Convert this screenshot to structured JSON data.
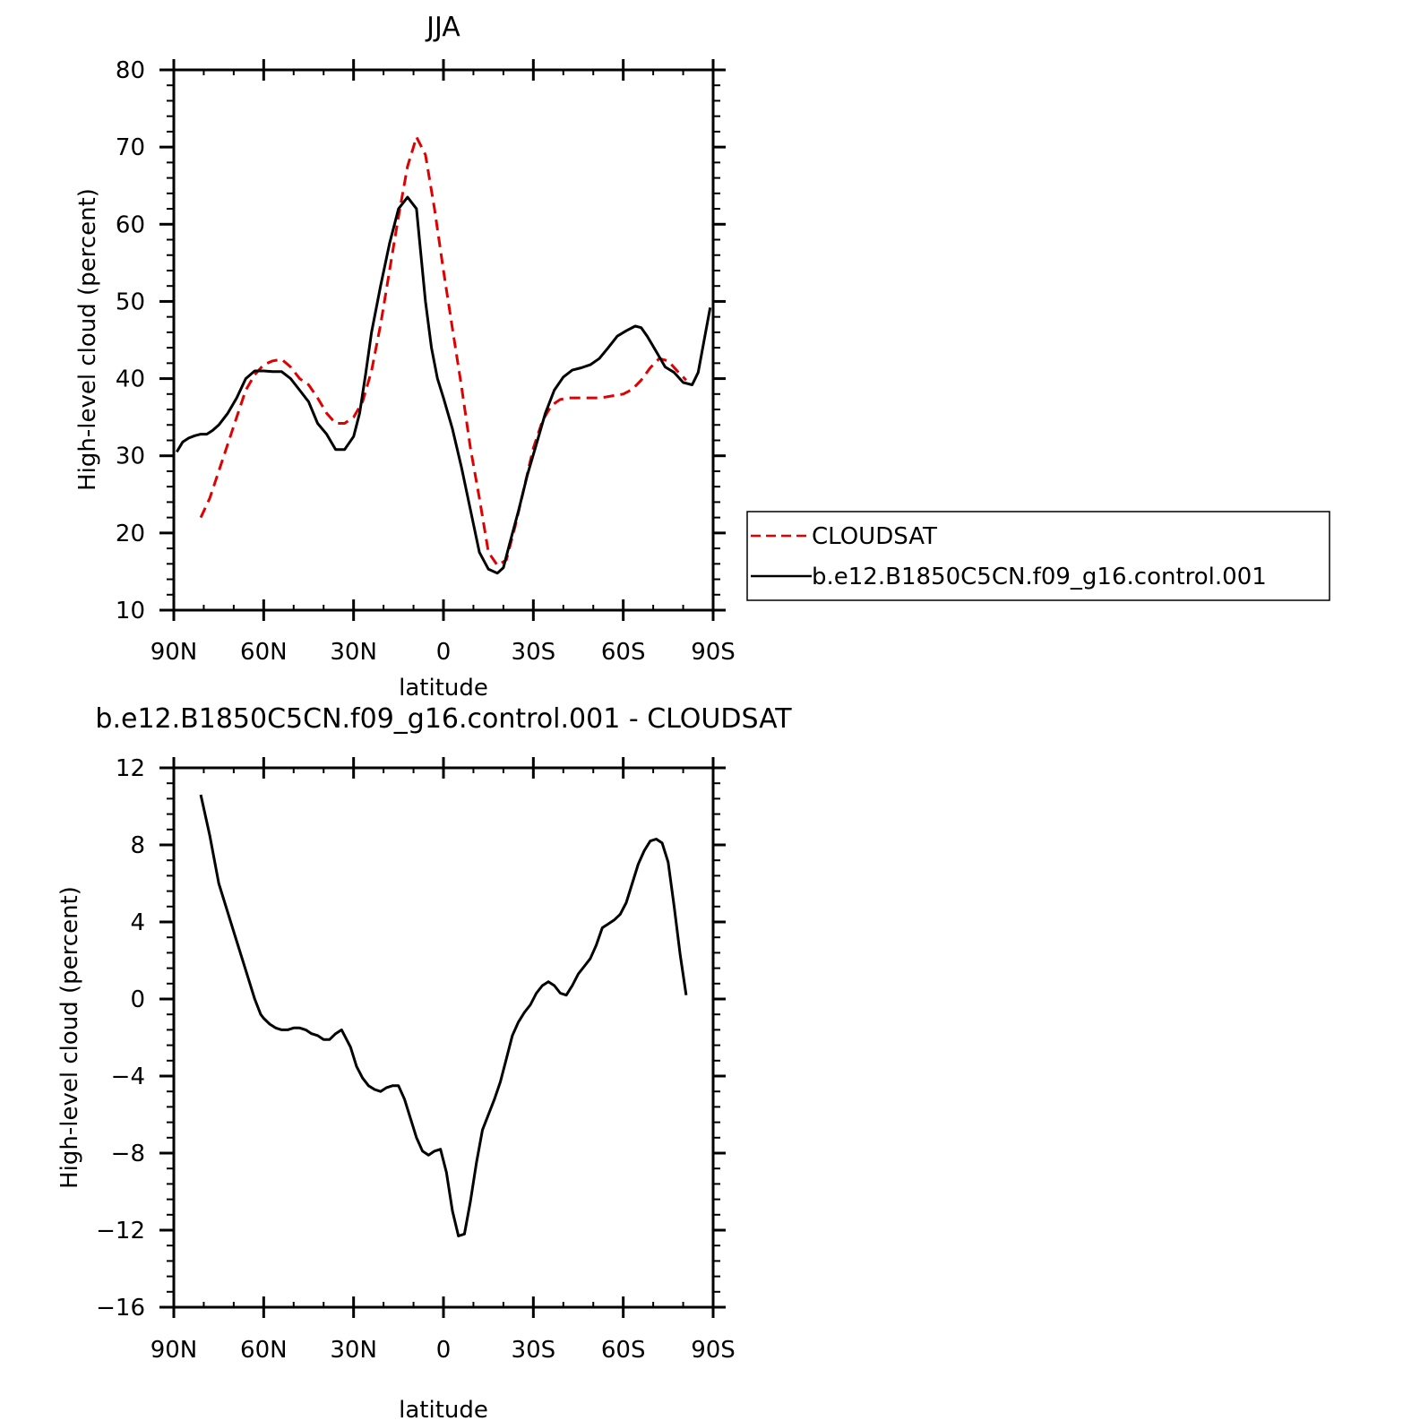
{
  "chart_data": [
    {
      "type": "line",
      "title": "JJA",
      "xlabel": "latitude",
      "ylabel": "High-level cloud (percent)",
      "x_unit": "degrees latitude (positive = N, negative = S)",
      "xlim": [
        90,
        -90
      ],
      "ylim": [
        10,
        80
      ],
      "x_ticks": [
        90,
        60,
        30,
        0,
        -30,
        -60,
        -90
      ],
      "x_tick_labels": [
        "90N",
        "60N",
        "30N",
        "0",
        "30S",
        "60S",
        "90S"
      ],
      "y_ticks": [
        10,
        20,
        30,
        40,
        50,
        60,
        70,
        80
      ],
      "y_tick_labels": [
        "10",
        "20",
        "30",
        "40",
        "50",
        "60",
        "70",
        "80"
      ],
      "grid": false,
      "legend": {
        "placement": "right-outside"
      },
      "series": [
        {
          "name": "CLOUDSAT",
          "color": "#e00000",
          "dash": "dashed",
          "x": [
            81,
            78,
            75,
            72,
            69,
            66,
            63,
            60,
            57,
            54,
            51,
            48,
            45,
            42,
            39,
            36,
            33,
            30,
            27,
            24,
            21,
            18,
            15,
            12,
            9,
            6,
            3,
            0,
            -3,
            -6,
            -9,
            -12,
            -15,
            -18,
            -21,
            -24,
            -27,
            -30,
            -33,
            -36,
            -39,
            -42,
            -45,
            -48,
            -51,
            -54,
            -57,
            -60,
            -63,
            -66,
            -69,
            -72,
            -75,
            -78,
            -81
          ],
          "y": [
            22,
            24.5,
            28,
            31.5,
            35,
            38.5,
            40.5,
            41.8,
            42.3,
            42.5,
            41.5,
            40,
            39.2,
            37.5,
            35.5,
            34.2,
            34.2,
            35,
            37,
            41,
            47,
            54,
            61,
            67.5,
            71.3,
            69,
            62,
            54,
            46.5,
            39,
            31,
            24.5,
            17.5,
            15.8,
            16.5,
            21,
            26,
            31,
            34.5,
            36.5,
            37.3,
            37.5,
            37.5,
            37.5,
            37.5,
            37.6,
            37.8,
            38,
            38.6,
            39.8,
            41.4,
            42.6,
            42.3,
            41,
            39.8
          ]
        },
        {
          "name": "b.e12.B1850C5CN.f09_g16.control.001",
          "color": "#000000",
          "dash": "solid",
          "x": [
            89,
            87,
            85,
            83,
            81,
            79,
            77,
            75,
            72,
            69,
            66,
            63,
            60,
            57,
            54,
            51,
            48,
            45,
            42,
            39,
            36,
            33,
            30,
            28,
            26,
            24,
            21,
            18,
            15,
            12,
            9,
            8,
            6,
            4,
            2,
            0,
            -3,
            -6,
            -9,
            -12,
            -15,
            -18,
            -20,
            -22,
            -25,
            -28,
            -31,
            -34,
            -37,
            -40,
            -43,
            -46,
            -49,
            -52,
            -55,
            -58,
            -61,
            -64,
            -66,
            -68,
            -71,
            -74,
            -77,
            -80,
            -83,
            -85,
            -87,
            -89
          ],
          "y": [
            30.5,
            31.8,
            32.3,
            32.6,
            32.8,
            32.8,
            33.3,
            34,
            35.5,
            37.5,
            40,
            41,
            41,
            40.9,
            40.9,
            40,
            38.5,
            37,
            34.2,
            32.8,
            30.8,
            30.8,
            32.5,
            35.5,
            40.5,
            46,
            52,
            57.5,
            62,
            63.5,
            62,
            58,
            50,
            44,
            40,
            37.5,
            33.5,
            28.5,
            23,
            17.5,
            15.3,
            14.8,
            15.5,
            18.5,
            22.8,
            27.5,
            31.5,
            35.5,
            38.5,
            40.2,
            41.1,
            41.4,
            41.8,
            42.6,
            44,
            45.5,
            46.2,
            46.8,
            46.6,
            45.5,
            43.5,
            41.5,
            40.8,
            39.5,
            39.2,
            40.8,
            45,
            49.2
          ]
        }
      ]
    },
    {
      "type": "line",
      "title": "b.e12.B1850C5CN.f09_g16.control.001 - CLOUDSAT",
      "xlabel": "latitude",
      "ylabel": "High-level cloud (percent)",
      "x_unit": "degrees latitude (positive = N, negative = S)",
      "xlim": [
        90,
        -90
      ],
      "ylim": [
        -16,
        12
      ],
      "x_ticks": [
        90,
        60,
        30,
        0,
        -30,
        -60,
        -90
      ],
      "x_tick_labels": [
        "90N",
        "60N",
        "30N",
        "0",
        "30S",
        "60S",
        "90S"
      ],
      "y_ticks": [
        -16,
        -12,
        -8,
        -4,
        0,
        4,
        8,
        12
      ],
      "y_tick_labels": [
        "−16",
        "−12",
        "−8",
        "−4",
        "0",
        "4",
        "8",
        "12"
      ],
      "grid": false,
      "series": [
        {
          "name": "",
          "color": "#000000",
          "dash": "solid",
          "x": [
            81,
            78,
            75,
            72,
            69,
            66,
            63,
            61,
            60,
            58,
            56,
            54,
            52,
            50,
            48,
            46,
            44,
            42,
            40,
            38,
            36,
            34,
            33,
            31,
            29,
            27,
            25,
            23,
            21,
            19,
            17,
            15,
            13,
            11,
            9,
            7,
            5,
            3,
            1,
            -1,
            -3,
            -5,
            -7,
            -9,
            -11,
            -13,
            -15,
            -17,
            -19,
            -21,
            -23,
            -25,
            -27,
            -29,
            -31,
            -33,
            -35,
            -37,
            -39,
            -41,
            -43,
            -45,
            -47,
            -49,
            -51,
            -53,
            -55,
            -57,
            -59,
            -61,
            -63,
            -65,
            -67,
            -69,
            -71,
            -73,
            -75,
            -77,
            -79,
            -81
          ],
          "y": [
            10.6,
            8.5,
            6,
            4.5,
            3,
            1.5,
            0,
            -0.8,
            -1,
            -1.3,
            -1.5,
            -1.6,
            -1.6,
            -1.5,
            -1.5,
            -1.6,
            -1.8,
            -1.9,
            -2.1,
            -2.1,
            -1.8,
            -1.6,
            -1.9,
            -2.5,
            -3.5,
            -4.1,
            -4.5,
            -4.7,
            -4.8,
            -4.6,
            -4.5,
            -4.5,
            -5.2,
            -6.2,
            -7.2,
            -7.9,
            -8.1,
            -7.9,
            -7.8,
            -9,
            -11,
            -12.3,
            -12.2,
            -10.5,
            -8.5,
            -6.8,
            -6,
            -5.2,
            -4.3,
            -3.1,
            -1.9,
            -1.2,
            -0.7,
            -0.3,
            0.3,
            0.7,
            0.9,
            0.7,
            0.3,
            0.2,
            0.7,
            1.3,
            1.7,
            2.1,
            2.8,
            3.7,
            3.9,
            4.1,
            4.4,
            5,
            6,
            7,
            7.7,
            8.2,
            8.3,
            8.1,
            7.1,
            4.8,
            2.3,
            0.2
          ]
        }
      ]
    }
  ]
}
